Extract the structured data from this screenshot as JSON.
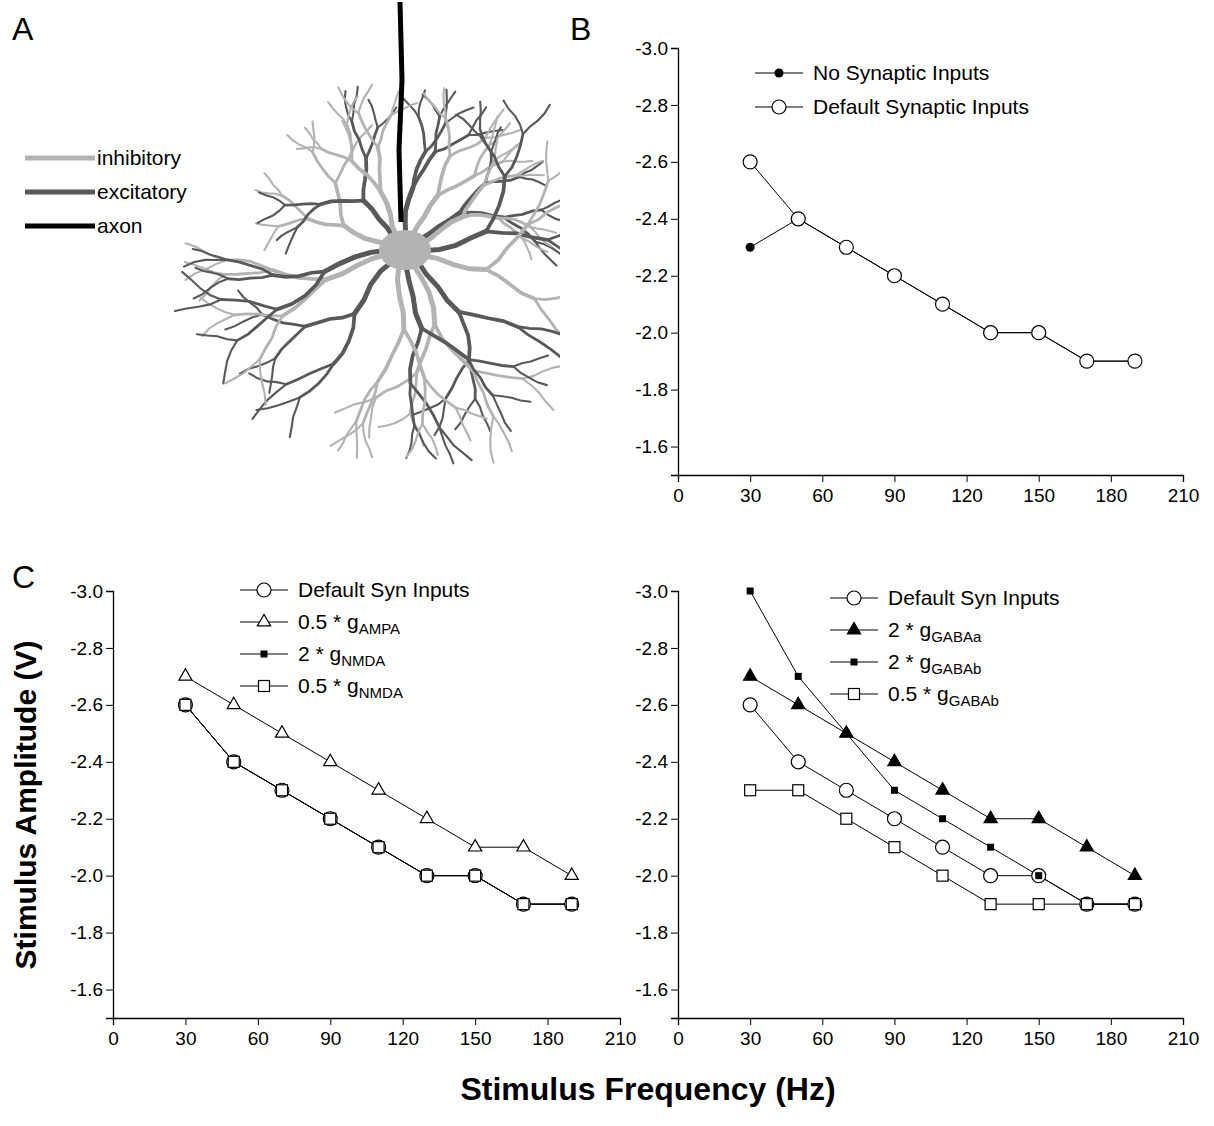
{
  "figure": {
    "panel_labels": [
      "A",
      "B",
      "C"
    ],
    "x_label": "Stimulus Frequency (Hz)",
    "y_label": "Stimulus Amplitude (V)",
    "diagram": {
      "legend": [
        {
          "name": "inhibitory",
          "color": "#b3b3b3"
        },
        {
          "name": "excitatory",
          "color": "#595959"
        },
        {
          "name": "axon",
          "color": "#000000"
        }
      ]
    }
  },
  "chart_data": [
    {
      "type": "line",
      "x": [
        30,
        50,
        70,
        90,
        110,
        130,
        150,
        170,
        190
      ],
      "xlim": [
        0,
        210
      ],
      "xticks": [
        0,
        30,
        60,
        90,
        120,
        150,
        180,
        210
      ],
      "ylim": [
        -1.5,
        -3.0
      ],
      "yticks": [
        {
          "value": -3.0,
          "label": "-3.0"
        },
        -2.8,
        -2.6,
        -2.4,
        -2.2,
        {
          "value": -2.0,
          "label": "-2.0"
        },
        -1.8,
        -1.6
      ],
      "legend": "top-left",
      "series": [
        {
          "name": "No Synaptic Inputs",
          "color": "#000000",
          "marker": "circle-filled",
          "values": [
            -2.3,
            -2.4,
            -2.3,
            -2.2,
            -2.1,
            -2.0,
            -2.0,
            -1.9,
            -1.9
          ]
        },
        {
          "name": "Default Synaptic Inputs",
          "color": "#000000",
          "marker": "circle-open",
          "values": [
            -2.6,
            -2.4,
            -2.3,
            -2.2,
            -2.1,
            -2.0,
            -2.0,
            -1.9,
            -1.9
          ]
        }
      ]
    },
    {
      "type": "line",
      "x": [
        30,
        50,
        70,
        90,
        110,
        130,
        150,
        170,
        190
      ],
      "xlim": [
        0,
        210
      ],
      "xticks": [
        0,
        30,
        60,
        90,
        120,
        150,
        180,
        210
      ],
      "ylim": [
        -1.5,
        -3.0
      ],
      "yticks": [
        {
          "value": -3.0,
          "label": "-3.0"
        },
        -2.8,
        -2.6,
        -2.4,
        -2.2,
        {
          "value": -2.0,
          "label": "-2.0"
        },
        -1.8,
        -1.6
      ],
      "legend": "top-left",
      "series": [
        {
          "name": "Default Syn Inputs",
          "color": "#000000",
          "marker": "circle-open",
          "values": [
            -2.6,
            -2.4,
            -2.3,
            -2.2,
            -2.1,
            -2.0,
            -2.0,
            -1.9,
            -1.9
          ]
        },
        {
          "name": "0.5 * gAMPA",
          "color": "#000000",
          "marker": "triangle-open",
          "values": [
            -2.7,
            -2.6,
            -2.5,
            -2.4,
            -2.3,
            -2.2,
            -2.1,
            -2.1,
            -2.0
          ]
        },
        {
          "name": "2 * gNMDA",
          "color": "#000000",
          "marker": "square-filled",
          "values": [
            -2.6,
            -2.4,
            -2.3,
            -2.2,
            -2.1,
            -2.0,
            -2.0,
            -1.9,
            -1.9
          ]
        },
        {
          "name": "0.5 * gNMDA",
          "color": "#000000",
          "marker": "square-open",
          "values": [
            -2.6,
            -2.4,
            -2.3,
            -2.2,
            -2.1,
            -2.0,
            -2.0,
            -1.9,
            -1.9
          ]
        }
      ]
    },
    {
      "type": "line",
      "x": [
        30,
        50,
        70,
        90,
        110,
        130,
        150,
        170,
        190
      ],
      "xlim": [
        0,
        210
      ],
      "xticks": [
        0,
        30,
        60,
        90,
        120,
        150,
        180,
        210
      ],
      "ylim": [
        -1.5,
        -3.0
      ],
      "yticks": [
        {
          "value": -3.0,
          "label": "-3.0"
        },
        -2.8,
        -2.6,
        -2.4,
        -2.2,
        {
          "value": -2.0,
          "label": "-2.0"
        },
        -1.8,
        -1.6
      ],
      "legend": "top-left",
      "series": [
        {
          "name": "Default Syn Inputs",
          "color": "#000000",
          "marker": "circle-open",
          "values": [
            -2.6,
            -2.4,
            -2.3,
            -2.2,
            -2.1,
            -2.0,
            -2.0,
            -1.9,
            -1.9
          ]
        },
        {
          "name": "2 * gGABAa",
          "color": "#000000",
          "marker": "triangle-filled",
          "values": [
            -2.7,
            -2.6,
            -2.5,
            -2.4,
            -2.3,
            -2.2,
            -2.2,
            -2.1,
            -2.0
          ]
        },
        {
          "name": "2 * gGABAb",
          "color": "#000000",
          "marker": "square-filled",
          "values": [
            -3.0,
            -2.7,
            -2.5,
            -2.3,
            -2.2,
            -2.1,
            -2.0,
            -1.9,
            -1.9
          ]
        },
        {
          "name": "0.5 * gGABAb",
          "color": "#000000",
          "marker": "square-open",
          "values": [
            -2.3,
            -2.3,
            -2.2,
            -2.1,
            -2.0,
            -1.9,
            -1.9,
            -1.9,
            -1.9
          ]
        }
      ]
    }
  ]
}
